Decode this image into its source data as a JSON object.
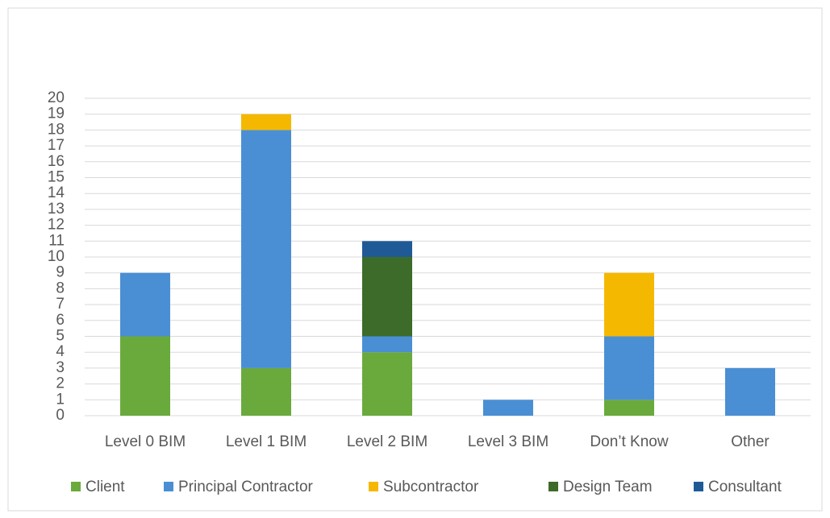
{
  "chart_data": {
    "type": "stacked_bar",
    "categories": [
      "Level 0 BIM",
      "Level 1 BIM",
      "Level 2 BIM",
      "Level 3 BIM",
      "Don’t Know",
      "Other"
    ],
    "series": [
      {
        "name": "Client",
        "color": "#6aaa3c",
        "values": [
          5,
          3,
          4,
          0,
          1,
          0
        ]
      },
      {
        "name": "Principal Contractor",
        "color": "#4a8fd4",
        "values": [
          4,
          15,
          1,
          1,
          4,
          3
        ]
      },
      {
        "name": "Subcontractor",
        "color": "#f5b800",
        "values": [
          0,
          1,
          0,
          0,
          4,
          0
        ]
      },
      {
        "name": "Design Team",
        "color": "#3d6b2a",
        "values": [
          0,
          0,
          5,
          0,
          0,
          0
        ]
      },
      {
        "name": "Consultant",
        "color": "#1f5a96",
        "values": [
          0,
          0,
          1,
          0,
          0,
          0
        ]
      }
    ],
    "ylim": [
      0,
      20
    ],
    "yticks": [
      0,
      1,
      2,
      3,
      4,
      5,
      6,
      7,
      8,
      9,
      10,
      11,
      12,
      13,
      14,
      15,
      16,
      17,
      18,
      19,
      20
    ],
    "grid": true,
    "legend": "bottom"
  }
}
